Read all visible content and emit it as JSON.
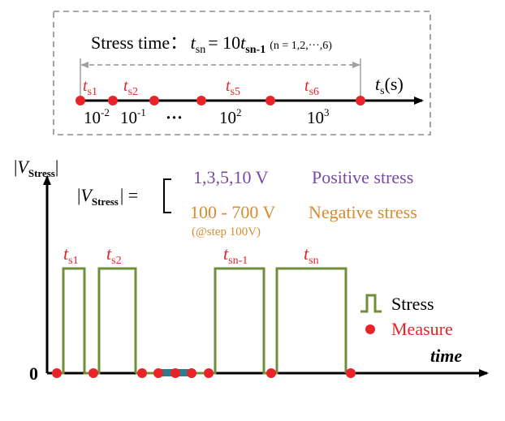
{
  "top_box": {
    "formula_label": "Stress time：",
    "formula_lhs": {
      "var": "t",
      "sub": "sn"
    },
    "formula_eq": "= 10",
    "formula_rhs": {
      "var": "t",
      "sub": "sn-1"
    },
    "formula_note": "(n = 1,2,···,6)",
    "axis_var": "t",
    "axis_sub": "s",
    "axis_unit": "(s)",
    "marker_labels": [
      {
        "var": "t",
        "sub": "s1"
      },
      {
        "var": "t",
        "sub": "s2"
      },
      {
        "var": "t",
        "sub": "s5"
      },
      {
        "var": "t",
        "sub": "s6"
      }
    ],
    "ticks": [
      {
        "base": "10",
        "exp": "-2"
      },
      {
        "base": "10",
        "exp": "-1"
      },
      {
        "base": "···",
        "exp": ""
      },
      {
        "base": "10",
        "exp": "2"
      },
      {
        "base": "10",
        "exp": "3"
      }
    ]
  },
  "waveform": {
    "y_axis_label": {
      "pre": "|",
      "var": "V",
      "sub": "Stress",
      "post": "|"
    },
    "x_axis_label": "time",
    "zero_label": "0",
    "bracket_label": {
      "pre": "|",
      "var": "V",
      "sub": "Stress",
      "post": "| ="
    },
    "positive_values": "1,3,5,10 V",
    "positive_label": "Positive stress",
    "negative_values": "100 - 700 V",
    "negative_step": "(@step 100V)",
    "negative_label": "Negative stress",
    "pulse_labels": [
      {
        "var": "t",
        "sub": "s1"
      },
      {
        "var": "t",
        "sub": "s2"
      },
      {
        "var": "t",
        "sub": "sn-1"
      },
      {
        "var": "t",
        "sub": "sn"
      }
    ],
    "legend": {
      "stress": "Stress",
      "measure": "Measure"
    }
  },
  "colors": {
    "pulse": "#6f8f3a",
    "measure": "#e8232a",
    "purple": "#7a4aa0",
    "orange": "#d78c2f",
    "dashed": "#8a8a8a",
    "arrow_gray": "#a0a0a0",
    "teal": "#2e7d8c"
  }
}
